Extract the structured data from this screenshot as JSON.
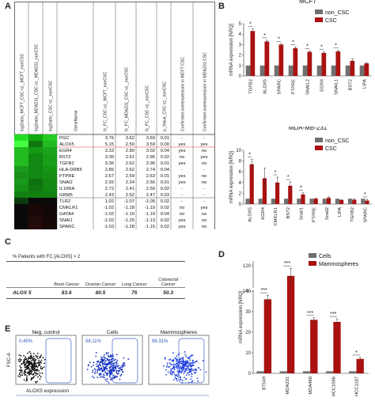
{
  "panels": {
    "a": "A",
    "b": "B",
    "c": "C",
    "d": "D",
    "e": "E"
  },
  "panelA": {
    "col_headers": [
      "log2ratio_MCF7_CSC vz._MCF7_nonCSC",
      "log2ratio_MDA231_CSC vz._MDA231_nonCSC",
      "log2ratio_CSC vz._nonCSC",
      "GeneName",
      "fc_FC_CSC vz._MCF7_nonCSC",
      "fc_FC_MDA231_CSC vz._nonCSC",
      "fc_FC_CSC vz._nonCSC",
      "p_Value_CSC vz._nonCSC",
      "Confirmed overexpression in MCF7 CSC",
      "Confirmed overexpression in MDA231 CSC"
    ],
    "rows": [
      {
        "gene": "PGC",
        "v1": "3.76",
        "v2": "3.62",
        "v3": "3.69",
        "p": "0.01",
        "c1": "-",
        "c2": "-",
        "heat": [
          "#22dd22",
          "#11aa11",
          "#22cc22"
        ]
      },
      {
        "gene": "ALOX5",
        "v1": "5.15",
        "v2": "2.50",
        "v3": "3.59",
        "p": "0.00",
        "c1": "yes",
        "c2": "yes",
        "heat": [
          "#44ff44",
          "#117711",
          "#22bb22"
        ]
      },
      {
        "gene": "EGR4",
        "v1": "3.33",
        "v2": "2.80",
        "v3": "3.02",
        "p": "0.04",
        "c1": "yes",
        "c2": "no",
        "heat": [
          "#22bb22",
          "#139913",
          "#1aa51a"
        ]
      },
      {
        "gene": "BST2",
        "v1": "3.36",
        "v2": "2.61",
        "v3": "2.96",
        "p": "0.02",
        "c1": "no",
        "c2": "yes",
        "heat": [
          "#22bb22",
          "#118811",
          "#1a9f1a"
        ]
      },
      {
        "gene": "TGFB2",
        "v1": "3.36",
        "v2": "2.62",
        "v3": "2.96",
        "p": "0.01",
        "c1": "yes",
        "c2": "no",
        "heat": [
          "#22bb22",
          "#118811",
          "#1a9f1a"
        ]
      },
      {
        "gene": "HLA-DRB5",
        "v1": "2.86",
        "v2": "2.62",
        "v3": "2.74",
        "p": "0.04",
        "c1": "-",
        "c2": "-",
        "heat": [
          "#1a9a1a",
          "#118811",
          "#159615"
        ]
      },
      {
        "gene": "PTPRE",
        "v1": "2.67",
        "v2": "2.59",
        "v3": "2.63",
        "p": "0.01",
        "c1": "yes",
        "c2": "no",
        "heat": [
          "#178f17",
          "#118811",
          "#148e14"
        ]
      },
      {
        "gene": "SNAI2",
        "v1": "2.92",
        "v2": "2.24",
        "v3": "2.56",
        "p": "0.01",
        "c1": "yes",
        "c2": "no",
        "heat": [
          "#1a9a1a",
          "#0f700f",
          "#138813"
        ]
      },
      {
        "gene": "IL10RA",
        "v1": "2.72",
        "v2": "2.41",
        "v3": "2.56",
        "p": "0.02",
        "c1": "-",
        "c2": "-",
        "heat": [
          "#179017",
          "#107810",
          "#138813"
        ]
      },
      {
        "gene": "GRM5",
        "v1": "2.43",
        "v2": "2.52",
        "v3": "2.47",
        "p": "0.03",
        "c1": "-",
        "c2": "-",
        "heat": [
          "#128012",
          "#118011",
          "#128012"
        ]
      },
      {
        "gene": "TLR2",
        "v1": "1.02",
        "v2": "-1.07",
        "v3": "-1.05",
        "p": "0.02",
        "c1": "-",
        "c2": "-",
        "heat": [
          "#0c3a0c",
          "#0a0a0a",
          "#0a0a0a"
        ]
      },
      {
        "gene": "CMKLR1",
        "v1": "-1.02",
        "v2": "-1.18",
        "v3": "-1.10",
        "p": "0.02",
        "c1": "no",
        "c2": "yes",
        "heat": [
          "#0a0a0a",
          "#1a0808",
          "#120808"
        ]
      },
      {
        "gene": "GATA4",
        "v1": "-1.02",
        "v2": "-1.19",
        "v3": "-1.10",
        "p": "0.04",
        "c1": "no",
        "c2": "no",
        "heat": [
          "#0a0a0a",
          "#1a0808",
          "#120808"
        ]
      },
      {
        "gene": "SNAI1",
        "v1": "-1.02",
        "v2": "-1.25",
        "v3": "-1.13",
        "p": "0.02",
        "c1": "yes",
        "c2": "no",
        "heat": [
          "#0a0a0a",
          "#220a0a",
          "#160808"
        ]
      },
      {
        "gene": "SPARC",
        "v1": "-1.03",
        "v2": "-1.28",
        "v3": "-1.15",
        "p": "0.02",
        "c1": "yes",
        "c2": "no",
        "heat": [
          "#0a0a0a",
          "#260a0a",
          "#180808"
        ]
      }
    ]
  },
  "panelC": {
    "header": "% Patients with FC [ALOX5] > 2",
    "columns": [
      "Brest Cancer",
      "Ovarian Cancer",
      "Lung Cancer",
      "Colorectal Cancer"
    ],
    "row_label": "ALOX 5",
    "values": [
      "83.6",
      "80.5",
      "75",
      "50.3"
    ]
  },
  "panelE": {
    "plots": [
      {
        "title": "Neg. control",
        "pct": "0.45%",
        "color": "#111111"
      },
      {
        "title": "Cells",
        "pct": "58.11%",
        "color": "#1030c0"
      },
      {
        "title": "Mammospheres",
        "pct": "96.31%",
        "color": "#2040e0"
      }
    ],
    "ylabel": "FSC-A",
    "xlabel": "ALOX5 expression"
  },
  "colors": {
    "non_csc": "#707070",
    "csc": "#aa1111",
    "cells": "#707070",
    "mammo": "#aa1111"
  },
  "chart_data": [
    {
      "type": "bar",
      "title": "MCF7",
      "ylabel": "mRNA expression [NRQ]",
      "ylim": [
        0,
        5
      ],
      "yticks": [
        0,
        1,
        2,
        3,
        4,
        5
      ],
      "categories": [
        "TGFB2",
        "ALOX5",
        "SPARC",
        "PTPRE",
        "SNAIL2",
        "EGR4",
        "SNAIL1",
        "BST2",
        "LIPA"
      ],
      "series": [
        {
          "name": "non_CSC",
          "values": [
            1,
            1,
            1,
            1,
            1,
            1,
            1,
            1,
            1
          ],
          "err": [
            0,
            0,
            0,
            0,
            0,
            0,
            0,
            0,
            0
          ]
        },
        {
          "name": "CSC",
          "values": [
            4.3,
            3.3,
            3.0,
            2.65,
            2.3,
            2.2,
            2.35,
            1.45,
            1.2
          ],
          "err": [
            0.2,
            0.12,
            0.08,
            0.12,
            0.1,
            0.12,
            0.1,
            0.18,
            0.08
          ]
        }
      ],
      "significance": [
        "*",
        "*",
        "*",
        "*",
        "*",
        "*",
        "*",
        "",
        ""
      ],
      "legend": "top-right"
    },
    {
      "type": "bar",
      "title": "MDA-MB-231",
      "ylabel": "mRNA expression [NRQ]",
      "ylim": [
        0,
        10
      ],
      "yticks": [
        0,
        2,
        4,
        6,
        8,
        10
      ],
      "categories": [
        "ALOX5",
        "EGR4",
        "CMKLR1",
        "BST2",
        "Snail1",
        "PTPRE",
        "Snail2",
        "LIPA",
        "TGFB2",
        "SPARC"
      ],
      "series": [
        {
          "name": "non_CSC",
          "values": [
            1,
            1,
            1,
            1,
            1,
            1,
            1,
            1,
            1,
            1
          ],
          "err": [
            0,
            0,
            0,
            0,
            0,
            0,
            0,
            0,
            0,
            0
          ]
        },
        {
          "name": "CSC",
          "values": [
            7.4,
            4.8,
            4.0,
            3.4,
            1.8,
            1.0,
            1.15,
            0.75,
            0.8,
            0.65
          ],
          "err": [
            0.9,
            1.9,
            1.0,
            0.7,
            0.3,
            0.1,
            0.2,
            0.1,
            0.15,
            0.25
          ]
        }
      ],
      "significance": [
        "*",
        "",
        "*",
        "*",
        "*",
        "",
        "",
        "",
        "",
        "*"
      ],
      "legend": "top-right"
    },
    {
      "type": "bar",
      "ylabel": "mRNA expression [NRQ]",
      "ylim": [
        0,
        120
      ],
      "yticks": [
        0,
        10,
        20,
        30,
        40,
        100,
        120
      ],
      "categories": [
        "BT549",
        "MDA231",
        "MDA468",
        "HCC1086",
        "HCC1187"
      ],
      "series": [
        {
          "name": "Cells",
          "values": [
            1,
            1,
            1,
            1,
            1
          ],
          "err": [
            0,
            0,
            0,
            0,
            0
          ]
        },
        {
          "name": "Mammospheres",
          "values": [
            36,
            112,
            26,
            25,
            7
          ],
          "err": [
            2,
            6,
            1,
            1.5,
            0.7
          ]
        }
      ],
      "significance": [
        "***",
        "***",
        "***",
        "***",
        "*"
      ],
      "legend": "top-right"
    }
  ]
}
